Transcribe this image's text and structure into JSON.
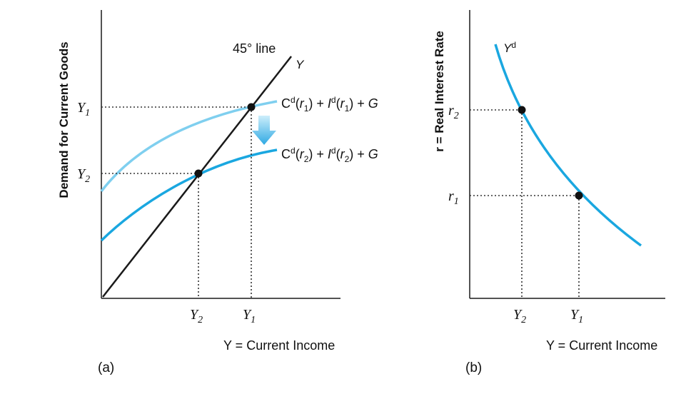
{
  "panel_a": {
    "panel_label": "(a)",
    "ylabel": "Demand for Current Goods",
    "xlabel": "Y = Current Income",
    "line_45_label": "45° line",
    "line_45_end_label": "Y",
    "curve_upper_label": "C",
    "curve_upper_label_parts": [
      "C",
      "d",
      "(",
      "r",
      "1",
      ") + ",
      "I",
      "d",
      "(",
      "r",
      "1",
      ") + ",
      "G"
    ],
    "curve_lower_label_parts": [
      "C",
      "d",
      "(",
      "r",
      "2",
      ") + ",
      "I",
      "d",
      "(",
      "r",
      "2",
      ") + ",
      "G"
    ],
    "y_ticks": [
      {
        "base": "Y",
        "sub": "1"
      },
      {
        "base": "Y",
        "sub": "2"
      }
    ],
    "x_ticks": [
      {
        "base": "Y",
        "sub": "2"
      },
      {
        "base": "Y",
        "sub": "1"
      }
    ]
  },
  "panel_b": {
    "panel_label": "(b)",
    "ylabel": "r = Real Interest Rate",
    "xlabel": "Y = Current Income",
    "curve_label_base": "Y",
    "curve_label_sup": "d",
    "y_ticks": [
      {
        "base": "r",
        "sub": "2"
      },
      {
        "base": "r",
        "sub": "1"
      }
    ],
    "x_ticks": [
      {
        "base": "Y",
        "sub": "2"
      },
      {
        "base": "Y",
        "sub": "1"
      }
    ]
  },
  "colors": {
    "curve_light": "#7fcfef",
    "curve_dark": "#1aa7e0",
    "arrow": "#3fb5e8",
    "axis": "#1a1a1a",
    "dotted": "#333333"
  }
}
